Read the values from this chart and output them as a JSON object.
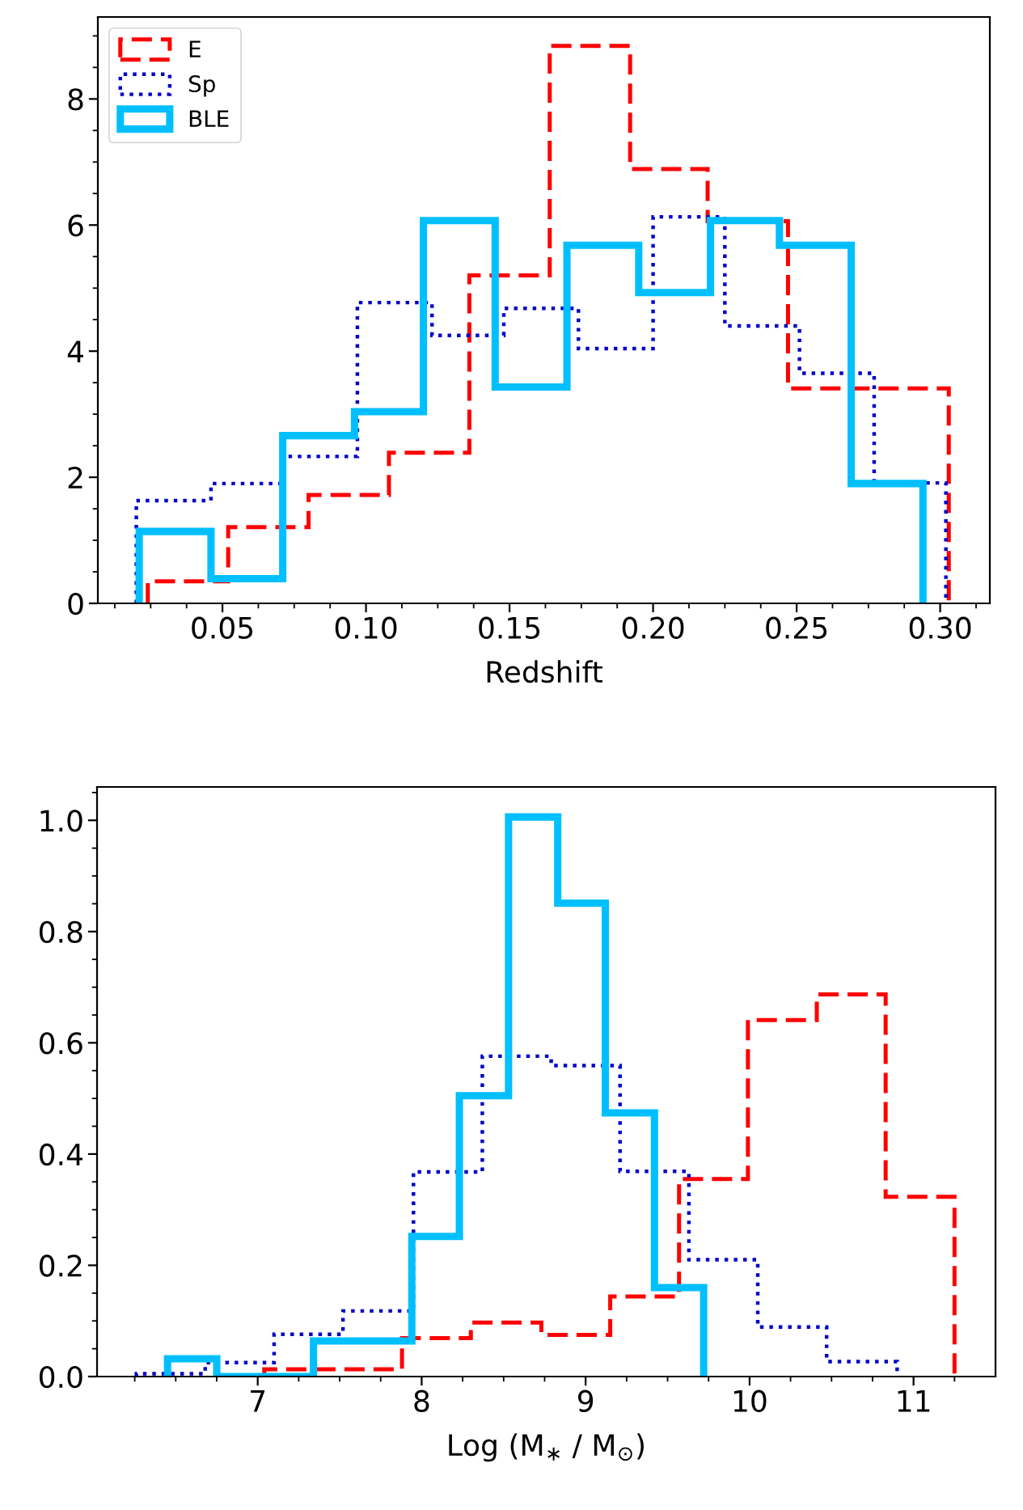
{
  "chart_data": [
    {
      "type": "step",
      "xlabel": "Redshift",
      "legend": "top left",
      "grid": false,
      "xlim": [
        0.0066,
        0.3173
      ],
      "ylim": [
        0,
        9.3
      ],
      "xticks": [
        {
          "value": 0.0125,
          "label": null
        },
        {
          "value": 0.025,
          "label": null
        },
        {
          "value": 0.0375,
          "label": null
        },
        {
          "value": 0.05,
          "label": "0.05"
        },
        {
          "value": 0.0625,
          "label": null
        },
        {
          "value": 0.075,
          "label": null
        },
        {
          "value": 0.0875,
          "label": null
        },
        {
          "value": 0.1,
          "label": "0.10"
        },
        {
          "value": 0.1125,
          "label": null
        },
        {
          "value": 0.125,
          "label": null
        },
        {
          "value": 0.1375,
          "label": null
        },
        {
          "value": 0.15,
          "label": "0.15"
        },
        {
          "value": 0.1625,
          "label": null
        },
        {
          "value": 0.175,
          "label": null
        },
        {
          "value": 0.1875,
          "label": null
        },
        {
          "value": 0.2,
          "label": "0.20"
        },
        {
          "value": 0.2125,
          "label": null
        },
        {
          "value": 0.225,
          "label": null
        },
        {
          "value": 0.2375,
          "label": null
        },
        {
          "value": 0.25,
          "label": "0.25"
        },
        {
          "value": 0.2625,
          "label": null
        },
        {
          "value": 0.275,
          "label": null
        },
        {
          "value": 0.2875,
          "label": null
        },
        {
          "value": 0.3,
          "label": "0.30"
        },
        {
          "value": 0.3125,
          "label": null
        }
      ],
      "yticks": [
        0,
        {
          "value": 0.5,
          "label": null
        },
        {
          "value": 1,
          "label": null
        },
        {
          "value": 1.5,
          "label": null
        },
        2,
        {
          "value": 2.5,
          "label": null
        },
        {
          "value": 3,
          "label": null
        },
        {
          "value": 3.5,
          "label": null
        },
        4,
        {
          "value": 4.5,
          "label": null
        },
        {
          "value": 5,
          "label": null
        },
        {
          "value": 5.5,
          "label": null
        },
        6,
        {
          "value": 6.5,
          "label": null
        },
        {
          "value": 7,
          "label": null
        },
        {
          "value": 7.5,
          "label": null
        },
        8,
        {
          "value": 8.5,
          "label": null
        },
        {
          "value": 9,
          "label": null
        }
      ],
      "series": [
        {
          "name": "E",
          "color": "#ff0000",
          "line_style": "dashed",
          "x": [
            0.024,
            0.024,
            0.052,
            0.08,
            0.108,
            0.136,
            0.164,
            0.192,
            0.219,
            0.247,
            0.275,
            0.303
          ],
          "values": [
            0,
            0.35,
            1.21,
            1.72,
            2.39,
            5.2,
            8.84,
            6.89,
            6.06,
            3.41,
            3.41,
            0
          ]
        },
        {
          "name": "Sp",
          "color": "#0000cc",
          "line_style": "dotted",
          "x": [
            0.02,
            0.02,
            0.046,
            0.071,
            0.097,
            0.123,
            0.148,
            0.174,
            0.2,
            0.225,
            0.251,
            0.277,
            0.302
          ],
          "values": [
            0,
            1.63,
            1.9,
            2.33,
            4.77,
            4.25,
            4.68,
            4.04,
            6.13,
            4.4,
            3.65,
            1.91,
            0
          ]
        },
        {
          "name": "BLE",
          "color": "#00bfff",
          "line_style": "solid",
          "x": [
            0.021,
            0.021,
            0.046,
            0.071,
            0.096,
            0.12,
            0.145,
            0.17,
            0.195,
            0.22,
            0.244,
            0.269,
            0.294
          ],
          "values": [
            0,
            1.14,
            0.39,
            2.66,
            3.04,
            6.07,
            3.43,
            5.68,
            4.93,
            6.07,
            5.68,
            1.9,
            0
          ]
        }
      ]
    },
    {
      "type": "step",
      "xlabel": "Log (M$_{∗}$ / M$_{⊙}$)",
      "legend": false,
      "grid": false,
      "xlim": [
        6.02,
        11.5
      ],
      "ylim": [
        0,
        1.06
      ],
      "xticks": [
        {
          "value": 6.25,
          "label": null
        },
        {
          "value": 6.5,
          "label": null
        },
        {
          "value": 6.75,
          "label": null
        },
        7,
        {
          "value": 7.25,
          "label": null
        },
        {
          "value": 7.5,
          "label": null
        },
        {
          "value": 7.75,
          "label": null
        },
        8,
        {
          "value": 8.25,
          "label": null
        },
        {
          "value": 8.5,
          "label": null
        },
        {
          "value": 8.75,
          "label": null
        },
        9,
        {
          "value": 9.25,
          "label": null
        },
        {
          "value": 9.5,
          "label": null
        },
        {
          "value": 9.75,
          "label": null
        },
        10,
        {
          "value": 10.25,
          "label": null
        },
        {
          "value": 10.5,
          "label": null
        },
        {
          "value": 10.75,
          "label": null
        },
        11,
        {
          "value": 11.25,
          "label": null
        }
      ],
      "yticks": [
        {
          "value": 0,
          "label": "0.0"
        },
        {
          "value": 0.05,
          "label": null
        },
        {
          "value": 0.1,
          "label": null
        },
        {
          "value": 0.15,
          "label": null
        },
        {
          "value": 0.2,
          "label": "0.2"
        },
        {
          "value": 0.25,
          "label": null
        },
        {
          "value": 0.3,
          "label": null
        },
        {
          "value": 0.35,
          "label": null
        },
        {
          "value": 0.4,
          "label": "0.4"
        },
        {
          "value": 0.45,
          "label": null
        },
        {
          "value": 0.5,
          "label": null
        },
        {
          "value": 0.55,
          "label": null
        },
        {
          "value": 0.6,
          "label": "0.6"
        },
        {
          "value": 0.65,
          "label": null
        },
        {
          "value": 0.7,
          "label": null
        },
        {
          "value": 0.75,
          "label": null
        },
        {
          "value": 0.8,
          "label": "0.8"
        },
        {
          "value": 0.85,
          "label": null
        },
        {
          "value": 0.9,
          "label": null
        },
        {
          "value": 0.95,
          "label": null
        },
        {
          "value": 1.0,
          "label": "1.0"
        },
        {
          "value": 1.05,
          "label": null
        }
      ],
      "series": [
        {
          "color": "#ff0000",
          "line_style": "dashed",
          "x": [
            7.04,
            7.04,
            7.46,
            7.88,
            8.3,
            8.73,
            9.15,
            9.57,
            9.99,
            10.41,
            10.83,
            11.25
          ],
          "values": [
            0,
            0.013,
            0.013,
            0.069,
            0.097,
            0.075,
            0.144,
            0.355,
            0.641,
            0.687,
            0.323,
            0
          ]
        },
        {
          "color": "#0000cc",
          "line_style": "dotted",
          "x": [
            6.26,
            6.26,
            6.68,
            7.1,
            7.52,
            7.95,
            8.37,
            8.79,
            9.21,
            9.63,
            10.05,
            10.47,
            10.9
          ],
          "values": [
            0,
            0.005,
            0.025,
            0.076,
            0.118,
            0.368,
            0.576,
            0.559,
            0.369,
            0.21,
            0.089,
            0.027,
            0
          ]
        },
        {
          "color": "#00bfff",
          "line_style": "solid",
          "x": [
            6.45,
            6.45,
            6.75,
            7.05,
            7.34,
            7.64,
            7.94,
            8.23,
            8.53,
            8.83,
            9.12,
            9.42,
            9.72
          ],
          "values": [
            0,
            0.032,
            0,
            0,
            0.064,
            0.064,
            0.252,
            0.505,
            1.006,
            0.851,
            0.474,
            0.16,
            0
          ]
        }
      ]
    }
  ]
}
